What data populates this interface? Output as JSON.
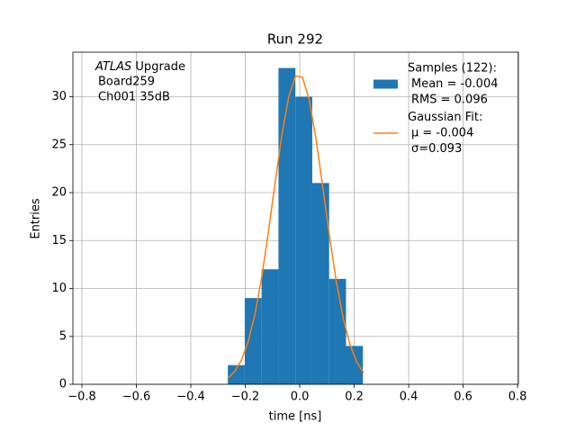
{
  "chart_data": {
    "type": "histogram",
    "title": "Run 292",
    "xlabel": "time [ns]",
    "ylabel": "Entries",
    "annotation": [
      "ATLAS",
      "Upgrade",
      "Board259",
      "Ch001 35dB"
    ],
    "series": [
      {
        "type": "histogram",
        "name": [
          "Samples (122):",
          "Mean = -0.004",
          "RMS = 0.096"
        ],
        "color": "#1f77b4",
        "bins": [
          -0.264,
          -0.202,
          -0.14,
          -0.078,
          -0.016,
          0.046,
          0.108,
          0.17,
          0.232
        ],
        "values": [
          2,
          9,
          12,
          33,
          30,
          21,
          11,
          4
        ]
      },
      {
        "type": "line",
        "name": [
          "Gaussian Fit:",
          "μ = -0.004",
          "σ=0.093"
        ],
        "color": "#ff7f0e",
        "x": [
          -0.265,
          -0.24,
          -0.215,
          -0.19,
          -0.165,
          -0.14,
          -0.115,
          -0.09,
          -0.065,
          -0.04,
          -0.015,
          0.01,
          0.035,
          0.06,
          0.085,
          0.11,
          0.135,
          0.16,
          0.185,
          0.21,
          0.235
        ],
        "values": [
          0.63,
          1.3,
          2.47,
          4.38,
          7.24,
          11.12,
          15.89,
          21.13,
          26.13,
          30.06,
          32.17,
          32.03,
          29.67,
          25.57,
          20.5,
          15.29,
          10.6,
          6.84,
          4.11,
          2.29,
          1.19
        ]
      }
    ],
    "xlim": [
      -0.833,
      0.803
    ],
    "ylim": [
      0,
      34.65
    ],
    "xticks": [
      {
        "value": -0.8,
        "label": "−0.8"
      },
      {
        "value": -0.6,
        "label": "−0.6"
      },
      {
        "value": -0.4,
        "label": "−0.4"
      },
      {
        "value": -0.2,
        "label": "−0.2"
      },
      {
        "value": 0,
        "label": "0.0"
      },
      {
        "value": 0.2,
        "label": "0.2"
      },
      {
        "value": 0.4,
        "label": "0.4"
      },
      {
        "value": 0.6,
        "label": "0.6"
      },
      {
        "value": 0.8,
        "label": "0.8"
      }
    ],
    "yticks": [
      0,
      5,
      10,
      15,
      20,
      25,
      30
    ],
    "grid": true,
    "legend": "upper right"
  }
}
